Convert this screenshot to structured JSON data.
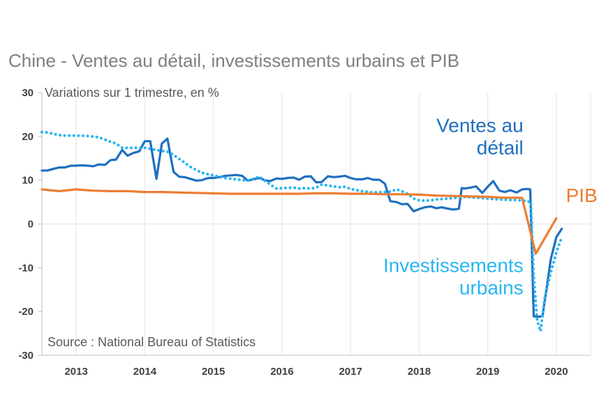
{
  "chart_data": {
    "type": "line",
    "title": "Chine - Ventes au détail, investissements urbains et PIB",
    "subtitle": "Variations sur 1 trimestre, en %",
    "source": "Source : National Bureau of Statistics",
    "xlabel": "",
    "ylabel": "",
    "xlim": [
      2012.5,
      2020.5
    ],
    "ylim": [
      -30,
      30
    ],
    "y_ticks": [
      30,
      20,
      10,
      0,
      -10,
      -20,
      -30
    ],
    "x_ticks": [
      "2013",
      "2014",
      "2015",
      "2016",
      "2017",
      "2018",
      "2019",
      "2020"
    ],
    "grid": "vertical year separators",
    "series": [
      {
        "name": "Ventes au détail",
        "label_lines": [
          "Ventes au",
          "détail"
        ],
        "color": "#1f6fbf",
        "style": "solid",
        "points": [
          [
            2012.5,
            12.2
          ],
          [
            2012.58,
            12.2
          ],
          [
            2012.67,
            12.6
          ],
          [
            2012.75,
            12.9
          ],
          [
            2012.83,
            12.9
          ],
          [
            2012.92,
            13.3
          ],
          [
            2013.0,
            13.3
          ],
          [
            2013.08,
            13.4
          ],
          [
            2013.17,
            13.3
          ],
          [
            2013.25,
            13.2
          ],
          [
            2013.33,
            13.6
          ],
          [
            2013.42,
            13.5
          ],
          [
            2013.5,
            14.6
          ],
          [
            2013.58,
            14.7
          ],
          [
            2013.67,
            16.9
          ],
          [
            2013.75,
            15.6
          ],
          [
            2013.83,
            16.2
          ],
          [
            2013.92,
            16.6
          ],
          [
            2014.0,
            18.9
          ],
          [
            2014.08,
            18.9
          ],
          [
            2014.17,
            10.3
          ],
          [
            2014.25,
            18.4
          ],
          [
            2014.33,
            19.5
          ],
          [
            2014.42,
            11.9
          ],
          [
            2014.5,
            10.8
          ],
          [
            2014.58,
            10.7
          ],
          [
            2014.67,
            10.3
          ],
          [
            2014.75,
            9.9
          ],
          [
            2014.83,
            10.0
          ],
          [
            2014.92,
            10.5
          ],
          [
            2015.0,
            10.5
          ],
          [
            2015.08,
            10.7
          ],
          [
            2015.17,
            11.0
          ],
          [
            2015.25,
            11.1
          ],
          [
            2015.33,
            11.2
          ],
          [
            2015.42,
            11.0
          ],
          [
            2015.5,
            9.9
          ],
          [
            2015.58,
            10.2
          ],
          [
            2015.67,
            10.5
          ],
          [
            2015.75,
            10.0
          ],
          [
            2015.83,
            9.8
          ],
          [
            2015.92,
            10.4
          ],
          [
            2016.0,
            10.3
          ],
          [
            2016.08,
            10.5
          ],
          [
            2016.17,
            10.6
          ],
          [
            2016.25,
            10.1
          ],
          [
            2016.33,
            10.8
          ],
          [
            2016.42,
            10.9
          ],
          [
            2016.5,
            9.5
          ],
          [
            2016.58,
            9.6
          ],
          [
            2016.67,
            10.9
          ],
          [
            2016.75,
            10.7
          ],
          [
            2016.83,
            10.8
          ],
          [
            2016.92,
            11.0
          ],
          [
            2017.0,
            10.5
          ],
          [
            2017.08,
            10.2
          ],
          [
            2017.17,
            10.2
          ],
          [
            2017.25,
            10.5
          ],
          [
            2017.33,
            10.1
          ],
          [
            2017.42,
            10.1
          ],
          [
            2017.5,
            9.2
          ],
          [
            2017.58,
            5.2
          ],
          [
            2017.67,
            5.0
          ],
          [
            2017.75,
            4.5
          ],
          [
            2017.83,
            4.6
          ],
          [
            2017.92,
            2.9
          ],
          [
            2018.0,
            3.4
          ],
          [
            2018.08,
            3.8
          ],
          [
            2018.17,
            4.0
          ],
          [
            2018.25,
            3.6
          ],
          [
            2018.33,
            3.8
          ],
          [
            2018.42,
            3.5
          ],
          [
            2018.5,
            3.3
          ],
          [
            2018.58,
            3.5
          ],
          [
            2018.62,
            8.2
          ],
          [
            2018.67,
            8.1
          ],
          [
            2018.75,
            8.3
          ],
          [
            2018.83,
            8.6
          ],
          [
            2018.92,
            7.1
          ],
          [
            2019.0,
            8.5
          ],
          [
            2019.08,
            9.8
          ],
          [
            2019.17,
            7.6
          ],
          [
            2019.25,
            7.3
          ],
          [
            2019.33,
            7.7
          ],
          [
            2019.42,
            7.2
          ],
          [
            2019.5,
            7.9
          ],
          [
            2019.58,
            8.0
          ],
          [
            2019.62,
            7.9
          ],
          [
            2019.67,
            -21.1
          ],
          [
            2019.75,
            -21.2
          ],
          [
            2019.8,
            -21.0
          ],
          [
            2019.92,
            -8.0
          ],
          [
            2020.0,
            -3.0
          ],
          [
            2020.08,
            -1.1
          ]
        ]
      },
      {
        "name": "Investissements urbains",
        "label_lines": [
          "Investissements",
          "urbains"
        ],
        "color": "#29b6f0",
        "style": "dotted",
        "points": [
          [
            2012.5,
            21.0
          ],
          [
            2012.58,
            20.9
          ],
          [
            2012.67,
            20.6
          ],
          [
            2012.75,
            20.3
          ],
          [
            2012.83,
            20.2
          ],
          [
            2013.0,
            20.2
          ],
          [
            2013.17,
            20.1
          ],
          [
            2013.33,
            19.8
          ],
          [
            2013.5,
            18.8
          ],
          [
            2013.58,
            18.4
          ],
          [
            2013.67,
            17.4
          ],
          [
            2013.83,
            17.4
          ],
          [
            2014.0,
            17.4
          ],
          [
            2014.17,
            16.9
          ],
          [
            2014.33,
            16.5
          ],
          [
            2014.42,
            15.8
          ],
          [
            2014.5,
            14.9
          ],
          [
            2014.58,
            14.0
          ],
          [
            2014.67,
            13.0
          ],
          [
            2014.83,
            11.7
          ],
          [
            2015.0,
            11.1
          ],
          [
            2015.17,
            10.5
          ],
          [
            2015.33,
            10.2
          ],
          [
            2015.5,
            9.9
          ],
          [
            2015.58,
            10.3
          ],
          [
            2015.67,
            10.8
          ],
          [
            2015.75,
            9.9
          ],
          [
            2015.83,
            9.0
          ],
          [
            2015.92,
            8.1
          ],
          [
            2016.0,
            8.2
          ],
          [
            2016.17,
            8.3
          ],
          [
            2016.25,
            8.1
          ],
          [
            2016.33,
            8.2
          ],
          [
            2016.42,
            8.1
          ],
          [
            2016.5,
            8.3
          ],
          [
            2016.58,
            9.0
          ],
          [
            2016.67,
            8.8
          ],
          [
            2016.75,
            8.6
          ],
          [
            2016.83,
            8.4
          ],
          [
            2016.92,
            8.5
          ],
          [
            2017.0,
            8.0
          ],
          [
            2017.17,
            7.5
          ],
          [
            2017.33,
            7.2
          ],
          [
            2017.5,
            7.3
          ],
          [
            2017.58,
            7.4
          ],
          [
            2017.67,
            7.9
          ],
          [
            2017.75,
            7.5
          ],
          [
            2017.83,
            6.9
          ],
          [
            2017.92,
            5.8
          ],
          [
            2018.0,
            5.4
          ],
          [
            2018.08,
            5.3
          ],
          [
            2018.17,
            5.4
          ],
          [
            2018.25,
            5.6
          ],
          [
            2018.33,
            5.7
          ],
          [
            2018.42,
            5.8
          ],
          [
            2018.5,
            5.9
          ],
          [
            2018.58,
            6.1
          ],
          [
            2018.67,
            6.2
          ],
          [
            2018.75,
            6.1
          ],
          [
            2018.83,
            6.0
          ],
          [
            2018.92,
            5.9
          ],
          [
            2019.0,
            5.8
          ],
          [
            2019.17,
            5.6
          ],
          [
            2019.33,
            5.5
          ],
          [
            2019.5,
            5.4
          ],
          [
            2019.58,
            5.2
          ],
          [
            2019.63,
            5.0
          ],
          [
            2019.67,
            -12.0
          ],
          [
            2019.72,
            -22.0
          ],
          [
            2019.77,
            -24.5
          ],
          [
            2019.83,
            -17.0
          ],
          [
            2019.92,
            -11.0
          ],
          [
            2020.0,
            -6.5
          ],
          [
            2020.08,
            -3.0
          ]
        ]
      },
      {
        "name": "PIB",
        "label_lines": [
          "PIB"
        ],
        "color": "#ed7d31",
        "style": "solid",
        "points": [
          [
            2012.5,
            7.9
          ],
          [
            2012.75,
            7.5
          ],
          [
            2013.0,
            7.9
          ],
          [
            2013.25,
            7.6
          ],
          [
            2013.5,
            7.5
          ],
          [
            2013.75,
            7.5
          ],
          [
            2014.0,
            7.3
          ],
          [
            2014.25,
            7.3
          ],
          [
            2014.5,
            7.2
          ],
          [
            2014.75,
            7.1
          ],
          [
            2015.0,
            7.0
          ],
          [
            2015.25,
            6.9
          ],
          [
            2015.5,
            6.9
          ],
          [
            2015.75,
            6.9
          ],
          [
            2016.0,
            6.9
          ],
          [
            2016.25,
            6.9
          ],
          [
            2016.5,
            7.0
          ],
          [
            2016.75,
            7.0
          ],
          [
            2017.0,
            6.9
          ],
          [
            2017.25,
            6.9
          ],
          [
            2017.5,
            6.8
          ],
          [
            2017.75,
            6.8
          ],
          [
            2018.0,
            6.7
          ],
          [
            2018.25,
            6.5
          ],
          [
            2018.5,
            6.4
          ],
          [
            2018.75,
            6.3
          ],
          [
            2019.0,
            6.2
          ],
          [
            2019.25,
            6.0
          ],
          [
            2019.5,
            6.0
          ],
          [
            2019.7,
            -6.8
          ],
          [
            2020.0,
            1.3
          ]
        ]
      }
    ]
  }
}
